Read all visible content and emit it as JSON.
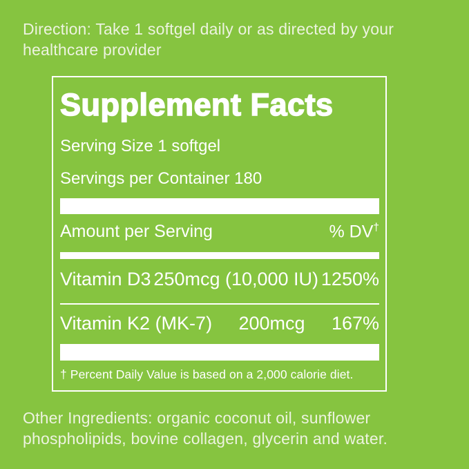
{
  "page": {
    "direction_text": "Direction: Take 1 softgel daily or as directed by your healthcare provider",
    "other_ingredients_text": "Other Ingredients: organic coconut oil, sunflower phospholipids, bovine collagen, glycerin and water."
  },
  "supplement_facts": {
    "title": "Supplement Facts",
    "serving_size": "Serving Size 1 softgel",
    "servings_per_container": "Servings per Container 180",
    "amount_per_serving_label": "Amount per Serving",
    "dv_label": "% DV",
    "dv_dagger": "†",
    "rows": [
      {
        "name": "Vitamin D3",
        "amount": "250mcg (10,000 IU)",
        "percent_dv": "1250%"
      },
      {
        "name": "Vitamin K2 (MK-7)",
        "amount": "200mcg",
        "percent_dv": "167%"
      }
    ],
    "footnote": "† Percent Daily Value is based on a 2,000 calorie diet."
  },
  "colors": {
    "background": "#86c440",
    "panel_border": "#ffffff",
    "panel_text": "#ffffff",
    "outer_text": "#edf3e0"
  }
}
